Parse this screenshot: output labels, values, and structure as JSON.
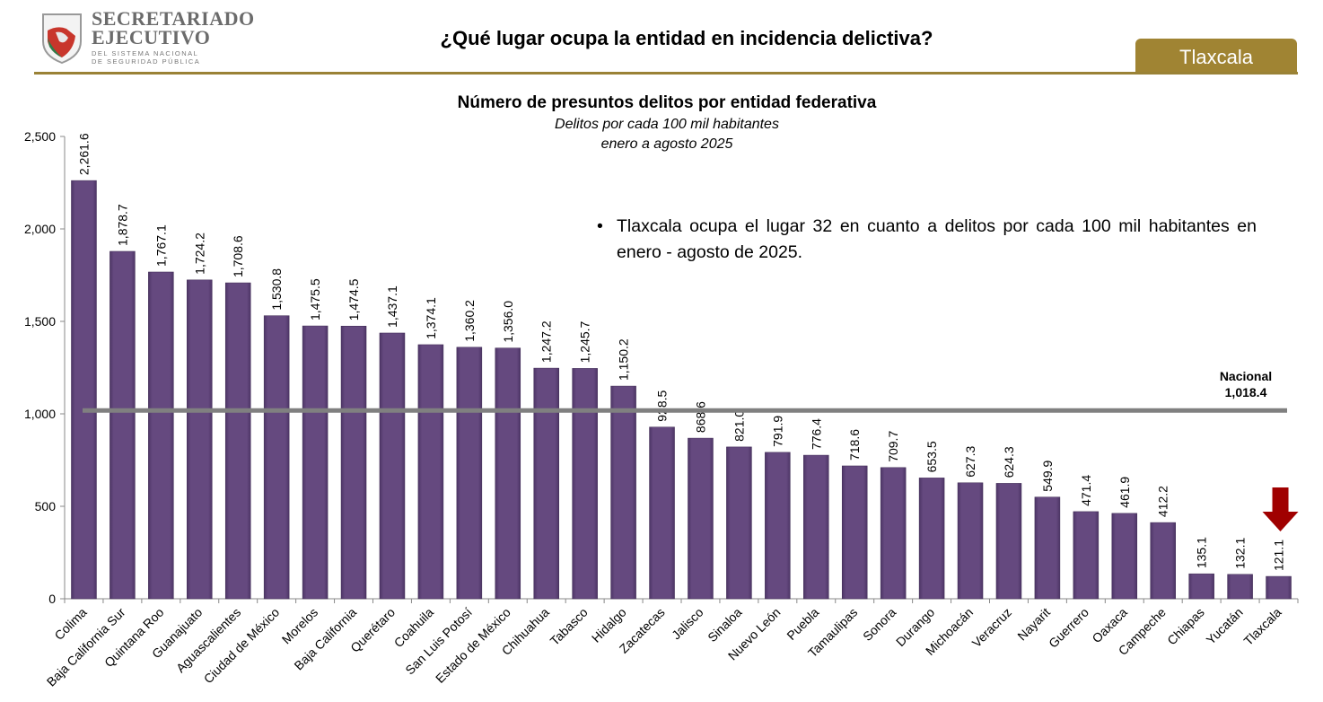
{
  "header": {
    "logo_text": [
      "SECRETARIADO",
      "EJECUTIVO",
      "DEL SISTEMA NACIONAL",
      "DE SEGURIDAD PÚBLICA"
    ],
    "title": "¿Qué lugar ocupa la entidad en incidencia delictiva?",
    "entity_badge": "Tlaxcala",
    "accent_color": "#a08433"
  },
  "note": "Tlaxcala ocupa el lugar 32 en cuanto a delitos por cada 100 mil habitantes en enero - agosto de 2025.",
  "chart_data": {
    "type": "bar",
    "title": "Número de presuntos delitos por entidad federativa",
    "subtitle": [
      "Delitos por cada 100 mil habitantes",
      "enero a agosto 2025"
    ],
    "categories": [
      "Colima",
      "Baja California Sur",
      "Quintana Roo",
      "Guanajuato",
      "Aguascalientes",
      "Ciudad de México",
      "Morelos",
      "Baja California",
      "Querétaro",
      "Coahuila",
      "San Luis Potosí",
      "Estado de México",
      "Chihuahua",
      "Tabasco",
      "Hidalgo",
      "Zacatecas",
      "Jalisco",
      "Sinaloa",
      "Nuevo León",
      "Puebla",
      "Tamaulipas",
      "Sonora",
      "Durango",
      "Michoacán",
      "Veracruz",
      "Nayarit",
      "Guerrero",
      "Oaxaca",
      "Campeche",
      "Chiapas",
      "Yucatán",
      "Tlaxcala"
    ],
    "values": [
      2261.6,
      1878.7,
      1767.1,
      1724.2,
      1708.6,
      1530.8,
      1475.5,
      1474.5,
      1437.1,
      1374.1,
      1360.2,
      1356.0,
      1247.2,
      1245.7,
      1150.2,
      928.5,
      868.6,
      821.0,
      791.9,
      776.4,
      718.6,
      709.7,
      653.5,
      627.3,
      624.3,
      549.9,
      471.4,
      461.9,
      412.2,
      135.1,
      132.1,
      121.1
    ],
    "ylim": [
      0,
      2500
    ],
    "yticks": [
      0,
      500,
      1000,
      1500,
      2000,
      2500
    ],
    "reference_line": {
      "label": "Nacional",
      "value": 1018.4,
      "value_label": "1,018.4"
    },
    "highlight": "Tlaxcala",
    "bar_color": "#65497f",
    "reference_color": "#808080",
    "arrow_color": "#a00000",
    "grid": false
  }
}
